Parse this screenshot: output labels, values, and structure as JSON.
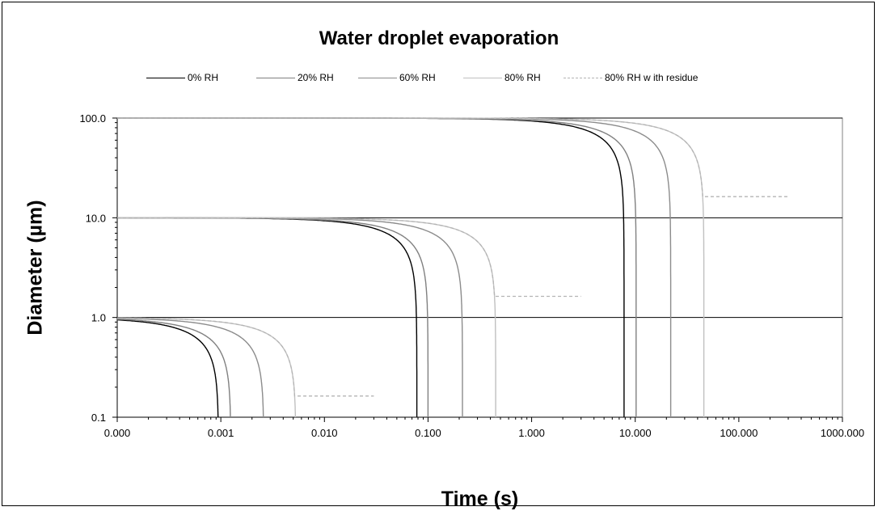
{
  "chart_data": {
    "type": "line",
    "title": "Water droplet evaporation",
    "xlabel": "Time (s)",
    "ylabel": "Diameter (µm)",
    "x_scale": "log",
    "y_scale": "log",
    "xlim": [
      0.0001,
      1000
    ],
    "ylim": [
      0.1,
      100
    ],
    "x_tick_values": [
      0.0001,
      0.001,
      0.01,
      0.1,
      1,
      10,
      100,
      1000
    ],
    "x_tick_labels": [
      "0.000",
      "0.001",
      "0.010",
      "0.100",
      "1.000",
      "10.000",
      "100.000",
      "1000.000"
    ],
    "y_tick_values": [
      0.1,
      1,
      10,
      100
    ],
    "y_tick_labels": [
      "0.1",
      "1.0",
      "10.0",
      "100.0"
    ],
    "grid": "horizontal major",
    "legend_position": "top",
    "series": [
      {
        "name": "0% RH",
        "color": "#000000",
        "dash": "solid",
        "curves": [
          {
            "d0": 1,
            "t_evap": 0.00095
          },
          {
            "d0": 10,
            "t_evap": 0.078
          },
          {
            "d0": 100,
            "t_evap": 7.8
          }
        ]
      },
      {
        "name": "20% RH",
        "color": "#808080",
        "dash": "solid",
        "curves": [
          {
            "d0": 1,
            "t_evap": 0.00125
          },
          {
            "d0": 10,
            "t_evap": 0.1
          },
          {
            "d0": 100,
            "t_evap": 10.2
          }
        ]
      },
      {
        "name": "60% RH",
        "color": "#8c8c8c",
        "dash": "solid",
        "curves": [
          {
            "d0": 1,
            "t_evap": 0.0026
          },
          {
            "d0": 10,
            "t_evap": 0.215
          },
          {
            "d0": 100,
            "t_evap": 22
          }
        ]
      },
      {
        "name": "80% RH",
        "color": "#c0c0c0",
        "dash": "solid",
        "curves": [
          {
            "d0": 1,
            "t_evap": 0.0053
          },
          {
            "d0": 10,
            "t_evap": 0.45
          },
          {
            "d0": 100,
            "t_evap": 46
          }
        ]
      },
      {
        "name": "80% RH w ith residue",
        "color": "#b4b4b4",
        "dash": "dashed",
        "curves": [
          {
            "d0": 1,
            "t_evap": 0.0053,
            "residue": 0.163,
            "t_end": 0.03
          },
          {
            "d0": 10,
            "t_evap": 0.45,
            "residue": 1.63,
            "t_end": 3
          },
          {
            "d0": 100,
            "t_evap": 46,
            "residue": 16.3,
            "t_end": 300
          }
        ]
      }
    ]
  }
}
